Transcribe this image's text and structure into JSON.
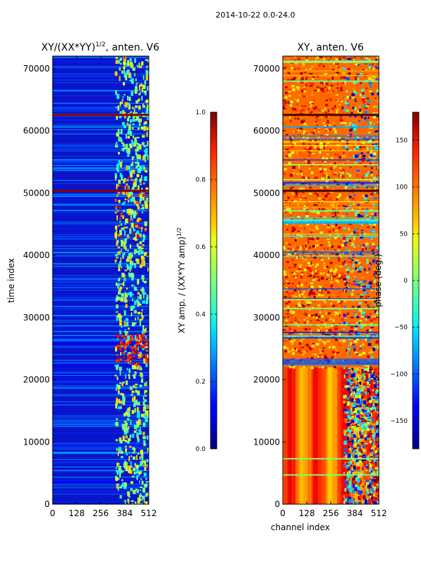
{
  "suptitle": "2014-10-22 0.0-24.0",
  "chart_data": [
    {
      "type": "heatmap",
      "title": "XY/(XX*YY)¹ᐟ², anten. V6",
      "title_parts": {
        "base": "XY/(XX*YY)",
        "exp": "1/2",
        "rest": ", anten. V6"
      },
      "xlabel": "",
      "ylabel": "time index",
      "xlim": [
        0,
        512
      ],
      "ylim": [
        0,
        72000
      ],
      "xticks": [
        0,
        128,
        256,
        384,
        512
      ],
      "xtick_labels": [
        "0",
        "128",
        "256",
        "384",
        "512"
      ],
      "yticks": [
        0,
        10000,
        20000,
        30000,
        40000,
        50000,
        60000,
        70000
      ],
      "ytick_labels": [
        "0",
        "10000",
        "20000",
        "30000",
        "40000",
        "50000",
        "60000",
        "70000"
      ],
      "colorbar": {
        "label_base": "XY amp. / (XX*YY amp)",
        "label_exp": "1/2",
        "range": [
          0.0,
          1.0
        ],
        "ticks": [
          0.0,
          0.2,
          0.4,
          0.6,
          0.8,
          1.0
        ],
        "tick_labels": [
          "0.0",
          "0.2",
          "0.4",
          "0.6",
          "0.8",
          "1.0"
        ]
      }
    },
    {
      "type": "heatmap",
      "title": "XY, anten. V6",
      "xlabel": "channel index",
      "ylabel": "",
      "xlim": [
        0,
        512
      ],
      "ylim": [
        0,
        72000
      ],
      "xticks": [
        0,
        128,
        256,
        384,
        512
      ],
      "xtick_labels": [
        "0",
        "128",
        "256",
        "384",
        "512"
      ],
      "yticks": [
        0,
        10000,
        20000,
        30000,
        40000,
        50000,
        60000,
        70000
      ],
      "ytick_labels": [
        "0",
        "10000",
        "20000",
        "30000",
        "40000",
        "50000",
        "60000",
        "70000"
      ],
      "colorbar": {
        "label": "phase (deg.)",
        "range": [
          -180,
          180
        ],
        "ticks": [
          -150,
          -100,
          -50,
          0,
          50,
          100,
          150
        ],
        "tick_labels": [
          "−150",
          "−100",
          "−50",
          "0",
          "50",
          "100",
          "150"
        ]
      }
    }
  ]
}
